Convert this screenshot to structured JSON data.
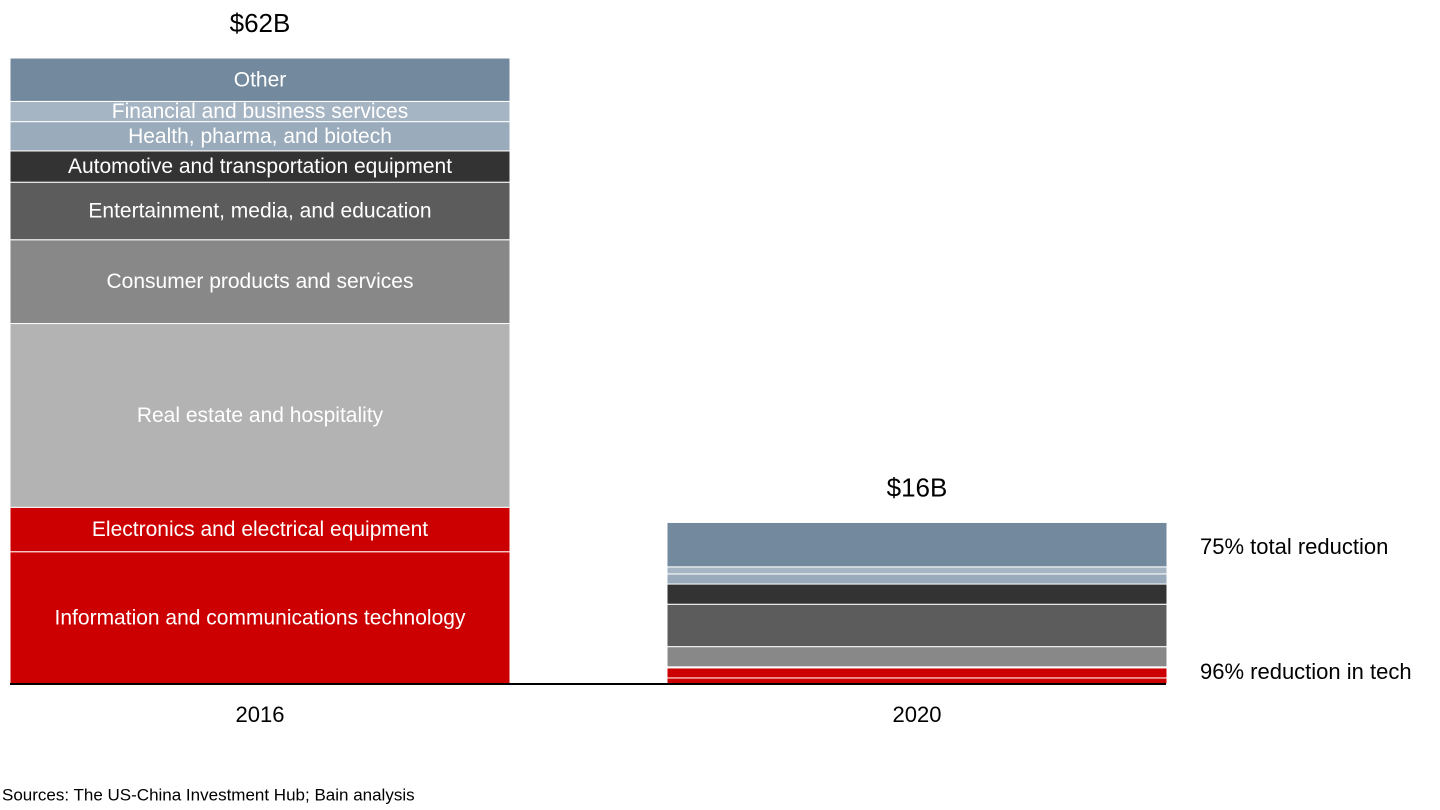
{
  "chart_data": {
    "type": "stacked_bar",
    "categories": [
      "2016",
      "2020"
    ],
    "series": [
      {
        "name": "Information and communications technology",
        "color": "#cc0000",
        "values": [
          13.1,
          0.6
        ]
      },
      {
        "name": "Electronics and electrical equipment",
        "color": "#cc0000",
        "values": [
          4.4,
          1.0
        ]
      },
      {
        "name": "Real estate and hospitality",
        "color": "#b3b3b3",
        "values": [
          18.2,
          0.1
        ]
      },
      {
        "name": "Consumer products and services",
        "color": "#888888",
        "values": [
          8.3,
          2.0
        ]
      },
      {
        "name": "Entertainment, media, and education",
        "color": "#5c5c5c",
        "values": [
          5.7,
          4.2
        ]
      },
      {
        "name": "Automotive and transportation equipment",
        "color": "#333333",
        "values": [
          3.1,
          2.0
        ]
      },
      {
        "name": "Health, pharma, and biotech",
        "color": "#9aabbb",
        "values": [
          2.9,
          1.0
        ]
      },
      {
        "name": "Financial and business services",
        "color": "#a6b5c4",
        "values": [
          2.0,
          0.7
        ]
      },
      {
        "name": "Other",
        "color": "#738a9e",
        "values": [
          4.3,
          4.4
        ]
      }
    ],
    "totals": {
      "values": [
        62,
        16
      ],
      "value_labels": [
        "$62B",
        "$16B"
      ]
    },
    "ylim": [
      0,
      62
    ],
    "annotations": [
      "75% total reduction",
      "96% reduction in tech"
    ],
    "source": "Sources: The US-China Investment Hub; Bain analysis"
  }
}
